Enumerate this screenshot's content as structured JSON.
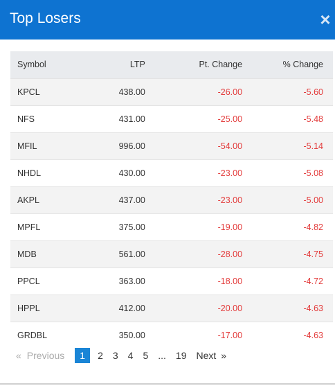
{
  "modal": {
    "title": "Top Losers",
    "close_icon": "close-icon",
    "close_glyph": "×"
  },
  "table": {
    "headers": {
      "symbol": "Symbol",
      "ltp": "LTP",
      "pt_change": "Pt. Change",
      "pct_change": "% Change"
    },
    "rows": [
      {
        "symbol": "KPCL",
        "ltp": "438.00",
        "pt_change": "-26.00",
        "pct_change": "-5.60"
      },
      {
        "symbol": "NFS",
        "ltp": "431.00",
        "pt_change": "-25.00",
        "pct_change": "-5.48"
      },
      {
        "symbol": "MFIL",
        "ltp": "996.00",
        "pt_change": "-54.00",
        "pct_change": "-5.14"
      },
      {
        "symbol": "NHDL",
        "ltp": "430.00",
        "pt_change": "-23.00",
        "pct_change": "-5.08"
      },
      {
        "symbol": "AKPL",
        "ltp": "437.00",
        "pt_change": "-23.00",
        "pct_change": "-5.00"
      },
      {
        "symbol": "MPFL",
        "ltp": "375.00",
        "pt_change": "-19.00",
        "pct_change": "-4.82"
      },
      {
        "symbol": "MDB",
        "ltp": "561.00",
        "pt_change": "-28.00",
        "pct_change": "-4.75"
      },
      {
        "symbol": "PPCL",
        "ltp": "363.00",
        "pt_change": "-18.00",
        "pct_change": "-4.72"
      },
      {
        "symbol": "HPPL",
        "ltp": "412.00",
        "pt_change": "-20.00",
        "pct_change": "-4.63"
      },
      {
        "symbol": "GRDBL",
        "ltp": "350.00",
        "pt_change": "-17.00",
        "pct_change": "-4.63"
      }
    ]
  },
  "pagination": {
    "prev_arrow": "«",
    "prev_label": "Previous",
    "pages": [
      "1",
      "2",
      "3",
      "4",
      "5"
    ],
    "ellipsis": "...",
    "last_page": "19",
    "next_label": "Next",
    "next_arrow": "»",
    "current_page": "1"
  },
  "colors": {
    "header_bg": "#0e73d1",
    "negative": "#e33b3b",
    "active_page": "#1a85d6"
  }
}
